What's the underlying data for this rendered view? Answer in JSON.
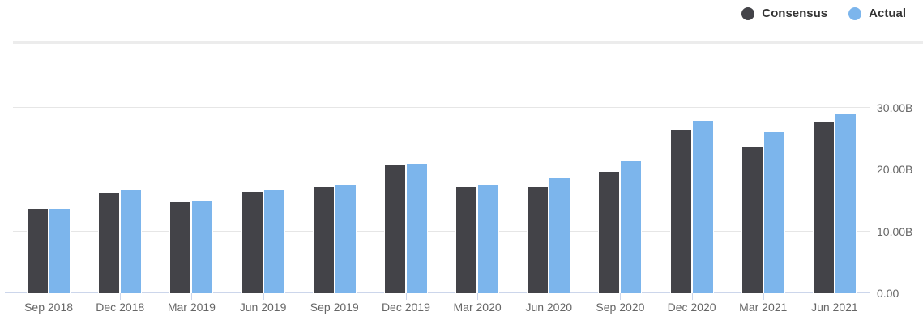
{
  "chart_data": {
    "type": "bar",
    "title": "",
    "xlabel": "",
    "ylabel": "",
    "categories": [
      "Sep 2018",
      "Dec 2018",
      "Mar 2019",
      "Jun 2019",
      "Sep 2019",
      "Dec 2019",
      "Mar 2020",
      "Jun 2020",
      "Sep 2020",
      "Dec 2020",
      "Mar 2021",
      "Jun 2021"
    ],
    "series": [
      {
        "name": "Consensus",
        "color": "#434348",
        "values": [
          13.78,
          16.4,
          14.98,
          16.5,
          17.35,
          20.89,
          17.23,
          17.3,
          19.82,
          26.44,
          23.72,
          27.89
        ]
      },
      {
        "name": "Actual",
        "color": "#7cb5ec",
        "values": [
          13.73,
          16.91,
          15.08,
          16.89,
          17.65,
          21.08,
          17.74,
          18.69,
          21.47,
          28.07,
          26.17,
          29.08
        ]
      }
    ],
    "ylim": [
      0,
      30
    ],
    "ytick_interval": 10,
    "ytick_labels": [
      "0.00",
      "10.00B",
      "20.00B",
      "30.00B"
    ],
    "yaxis_side": "right",
    "grid": true,
    "legend_position": "top-right"
  },
  "colors": {
    "background": "#ffffff",
    "gridline": "#e6e6e6",
    "axis_line": "#ccd6eb",
    "axis_text": "#666666",
    "legend_text": "#333333",
    "divider": "#ececec"
  }
}
